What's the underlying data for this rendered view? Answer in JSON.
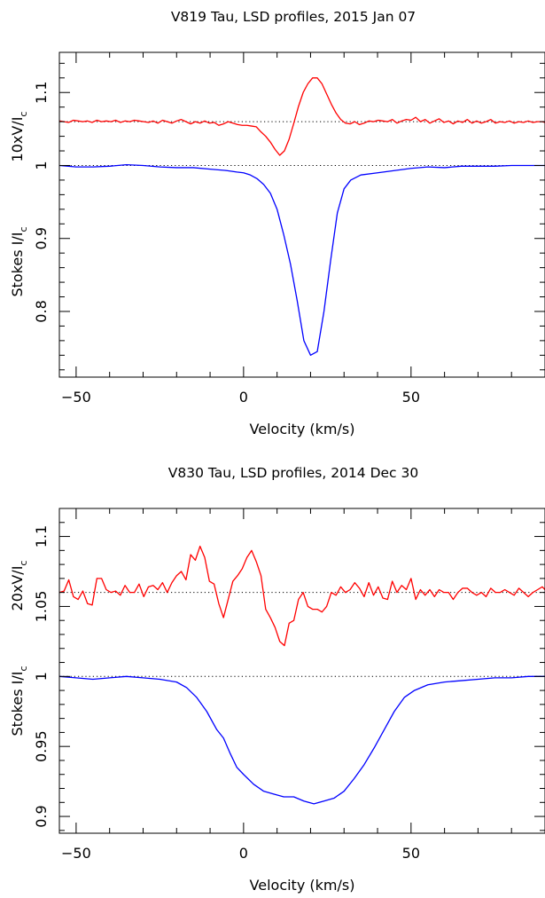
{
  "chart_data": [
    {
      "type": "line",
      "title": "V819 Tau, LSD profiles, 2015 Jan 07",
      "xlabel": "Velocity (km/s)",
      "ylabel_parts": {
        "upper": "10xV/I",
        "upper_sub": "c",
        "lower": "Stokes I/I",
        "lower_sub": "c"
      },
      "xlim": [
        -55,
        90
      ],
      "ylim": [
        0.71,
        1.155
      ],
      "x_ticks": [
        -50,
        0,
        50
      ],
      "y_ticks": [
        0.8,
        0.9,
        1,
        1.1
      ],
      "x_minor_step": 10,
      "y_minor_step": 0.02,
      "reference_lines": [
        1.0,
        1.06
      ],
      "series": [
        {
          "color": "#ff0000",
          "x": [
            -55,
            -53.6,
            -52.2,
            -50.8,
            -49.4,
            -48,
            -46.6,
            -45.2,
            -43.8,
            -42.4,
            -41,
            -39.6,
            -38.2,
            -36.8,
            -35.4,
            -34,
            -32.6,
            -31.2,
            -29.8,
            -28.4,
            -27,
            -25.6,
            -24.2,
            -22.8,
            -21.4,
            -20,
            -18.6,
            -17.2,
            -15.8,
            -14.4,
            -13,
            -11.6,
            -10.2,
            -8.8,
            -7.4,
            -6,
            -4.6,
            -3.2,
            -1.8,
            -0.4,
            1,
            2.4,
            3.8,
            5.2,
            6.6,
            8,
            9.4,
            10.8,
            12.2,
            13.6,
            15,
            16.4,
            17.8,
            19.2,
            20.6,
            22,
            23.4,
            24.8,
            26.2,
            27.6,
            29,
            30.4,
            31.8,
            33.2,
            34.6,
            36,
            37.4,
            38.8,
            40.2,
            41.6,
            43,
            44.4,
            45.8,
            47.2,
            48.6,
            50,
            51.4,
            52.8,
            54.2,
            55.6,
            57,
            58.4,
            59.8,
            61.2,
            62.6,
            64,
            65.4,
            66.8,
            68.2,
            69.6,
            71,
            72.4,
            73.8,
            75.2,
            76.6,
            78,
            79.4,
            80.8,
            82.2,
            83.6,
            85,
            86.4,
            87.8,
            89.2,
            90
          ],
          "values": [
            1.061,
            1.06,
            1.059,
            1.062,
            1.061,
            1.06,
            1.061,
            1.059,
            1.062,
            1.06,
            1.061,
            1.06,
            1.062,
            1.059,
            1.061,
            1.06,
            1.062,
            1.061,
            1.06,
            1.059,
            1.061,
            1.058,
            1.062,
            1.06,
            1.058,
            1.061,
            1.063,
            1.06,
            1.057,
            1.06,
            1.058,
            1.061,
            1.058,
            1.059,
            1.055,
            1.057,
            1.06,
            1.058,
            1.056,
            1.055,
            1.055,
            1.054,
            1.053,
            1.046,
            1.04,
            1.032,
            1.022,
            1.014,
            1.02,
            1.036,
            1.058,
            1.081,
            1.1,
            1.112,
            1.12,
            1.12,
            1.112,
            1.098,
            1.084,
            1.072,
            1.063,
            1.058,
            1.057,
            1.06,
            1.056,
            1.058,
            1.061,
            1.06,
            1.062,
            1.061,
            1.06,
            1.063,
            1.058,
            1.061,
            1.063,
            1.062,
            1.066,
            1.06,
            1.063,
            1.058,
            1.061,
            1.064,
            1.059,
            1.061,
            1.057,
            1.061,
            1.059,
            1.063,
            1.058,
            1.061,
            1.058,
            1.06,
            1.063,
            1.058,
            1.06,
            1.059,
            1.061,
            1.058,
            1.06,
            1.059,
            1.061,
            1.059,
            1.06,
            1.06,
            1.059
          ]
        },
        {
          "color": "#0000ff",
          "x": [
            -55,
            -50,
            -45,
            -40,
            -35,
            -30,
            -25,
            -20,
            -15,
            -10,
            -5,
            -2,
            0,
            2,
            4,
            6,
            8,
            10,
            12,
            14,
            16,
            18,
            20,
            22,
            24,
            26,
            28,
            30,
            32,
            35,
            40,
            45,
            50,
            55,
            60,
            65,
            70,
            75,
            80,
            85,
            90
          ],
          "values": [
            1,
            0.998,
            0.998,
            0.999,
            1.001,
            1,
            0.998,
            0.997,
            0.997,
            0.995,
            0.993,
            0.991,
            0.99,
            0.987,
            0.982,
            0.974,
            0.962,
            0.94,
            0.905,
            0.865,
            0.815,
            0.76,
            0.74,
            0.745,
            0.8,
            0.87,
            0.935,
            0.968,
            0.98,
            0.987,
            0.99,
            0.993,
            0.996,
            0.998,
            0.997,
            0.999,
            0.999,
            0.999,
            1,
            1,
            1
          ]
        }
      ]
    },
    {
      "type": "line",
      "title": "V830 Tau, LSD profiles, 2014 Dec 30",
      "xlabel": "Velocity (km/s)",
      "ylabel_parts": {
        "upper": "20xV/I",
        "upper_sub": "c",
        "lower": "Stokes I/I",
        "lower_sub": "c"
      },
      "xlim": [
        -55,
        90
      ],
      "ylim": [
        0.888,
        1.12
      ],
      "x_ticks": [
        -50,
        0,
        50
      ],
      "y_ticks": [
        0.9,
        0.95,
        1,
        1.05,
        1.1
      ],
      "x_minor_step": 10,
      "y_minor_step": 0.01,
      "reference_lines": [
        1.0,
        1.06
      ],
      "series": [
        {
          "color": "#ff0000",
          "x": [
            -55,
            -53.6,
            -52.2,
            -50.8,
            -49.4,
            -48,
            -46.6,
            -45.2,
            -43.8,
            -42.4,
            -41,
            -39.6,
            -38.2,
            -36.8,
            -35.4,
            -34,
            -32.6,
            -31.2,
            -29.8,
            -28.4,
            -27,
            -25.6,
            -24.2,
            -22.8,
            -21.4,
            -20,
            -18.6,
            -17.2,
            -15.8,
            -14.4,
            -13,
            -11.6,
            -10.2,
            -8.8,
            -7.4,
            -6,
            -4.6,
            -3.2,
            -1.8,
            -0.4,
            1,
            2.4,
            3.8,
            5.2,
            6.6,
            8,
            9.4,
            10.8,
            12.2,
            13.6,
            15,
            16.4,
            17.8,
            19.2,
            20.6,
            22,
            23.4,
            24.8,
            26.2,
            27.6,
            29,
            30.4,
            31.8,
            33.2,
            34.6,
            36,
            37.4,
            38.8,
            40.2,
            41.6,
            43,
            44.4,
            45.8,
            47.2,
            48.6,
            50,
            51.4,
            52.8,
            54.2,
            55.6,
            57,
            58.4,
            59.8,
            61.2,
            62.6,
            64,
            65.4,
            66.8,
            68.2,
            69.6,
            71,
            72.4,
            73.8,
            75.2,
            76.6,
            78,
            79.4,
            80.8,
            82.2,
            83.6,
            85,
            86.4,
            87.8,
            89.2,
            90
          ],
          "values": [
            1.06,
            1.061,
            1.069,
            1.057,
            1.055,
            1.061,
            1.052,
            1.051,
            1.07,
            1.07,
            1.062,
            1.06,
            1.061,
            1.058,
            1.065,
            1.06,
            1.06,
            1.066,
            1.057,
            1.064,
            1.065,
            1.062,
            1.067,
            1.06,
            1.067,
            1.072,
            1.075,
            1.069,
            1.087,
            1.083,
            1.093,
            1.085,
            1.068,
            1.066,
            1.052,
            1.042,
            1.055,
            1.068,
            1.072,
            1.077,
            1.085,
            1.09,
            1.082,
            1.072,
            1.048,
            1.042,
            1.035,
            1.025,
            1.022,
            1.038,
            1.04,
            1.055,
            1.06,
            1.05,
            1.048,
            1.048,
            1.046,
            1.05,
            1.06,
            1.058,
            1.064,
            1.06,
            1.062,
            1.067,
            1.063,
            1.057,
            1.067,
            1.058,
            1.064,
            1.056,
            1.055,
            1.068,
            1.06,
            1.065,
            1.062,
            1.07,
            1.055,
            1.062,
            1.058,
            1.062,
            1.057,
            1.062,
            1.06,
            1.06,
            1.055,
            1.06,
            1.063,
            1.063,
            1.06,
            1.058,
            1.06,
            1.057,
            1.063,
            1.06,
            1.06,
            1.062,
            1.06,
            1.058,
            1.063,
            1.06,
            1.057,
            1.06,
            1.062,
            1.064,
            1.062
          ]
        },
        {
          "color": "#0000ff",
          "x": [
            -55,
            -50,
            -45,
            -40,
            -35,
            -30,
            -25,
            -20,
            -17,
            -14,
            -11,
            -8,
            -6,
            -4,
            -2,
            0,
            3,
            6,
            9,
            12,
            15,
            18,
            21,
            24,
            27,
            30,
            33,
            36,
            39,
            42,
            45,
            48,
            51,
            55,
            60,
            65,
            70,
            75,
            80,
            85,
            90
          ],
          "values": [
            1,
            0.999,
            0.998,
            0.999,
            1,
            0.999,
            0.998,
            0.996,
            0.992,
            0.985,
            0.975,
            0.962,
            0.956,
            0.945,
            0.935,
            0.93,
            0.923,
            0.918,
            0.916,
            0.914,
            0.914,
            0.911,
            0.909,
            0.911,
            0.913,
            0.918,
            0.927,
            0.937,
            0.949,
            0.962,
            0.975,
            0.985,
            0.99,
            0.994,
            0.996,
            0.997,
            0.998,
            0.999,
            0.999,
            1,
            1
          ]
        }
      ]
    }
  ]
}
